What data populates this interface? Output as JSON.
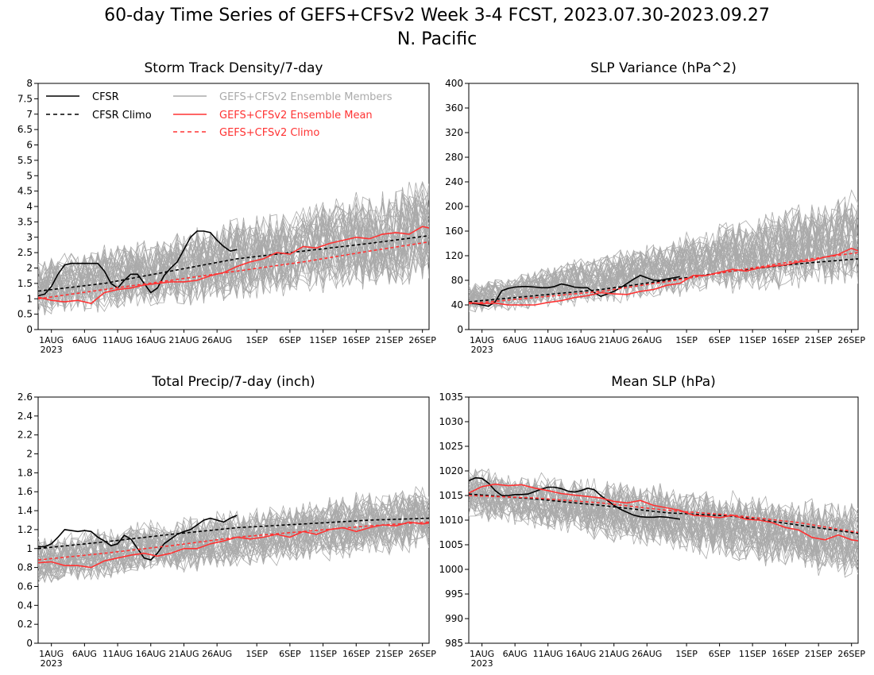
{
  "figure": {
    "title_line1": "60-day Time Series of GEFS+CFSv2 Week 3-4 FCST, 2023.07.30-2023.09.27",
    "title_line2": "N. Pacific"
  },
  "legend": [
    {
      "label": "CFSR",
      "color": "#000000",
      "style": "solid"
    },
    {
      "label": "CFSR Climo",
      "color": "#000000",
      "style": "dashed"
    },
    {
      "label": "GEFS+CFSv2 Ensemble Members",
      "color": "#aaaaaa",
      "style": "solid"
    },
    {
      "label": "GEFS+CFSv2 Ensemble Mean",
      "color": "#ff3333",
      "style": "solid"
    },
    {
      "label": "GEFS+CFSv2 Climo",
      "color": "#ff3333",
      "style": "dashed"
    }
  ],
  "x_axis": {
    "day_range": [
      0,
      59
    ],
    "ticks": [
      {
        "day": 2,
        "label": "1AUG",
        "label2": "2023"
      },
      {
        "day": 7,
        "label": "6AUG"
      },
      {
        "day": 12,
        "label": "11AUG"
      },
      {
        "day": 17,
        "label": "16AUG"
      },
      {
        "day": 22,
        "label": "21AUG"
      },
      {
        "day": 27,
        "label": "26AUG"
      },
      {
        "day": 33,
        "label": "1SEP"
      },
      {
        "day": 38,
        "label": "6SEP"
      },
      {
        "day": 43,
        "label": "11SEP"
      },
      {
        "day": 48,
        "label": "16SEP"
      },
      {
        "day": 53,
        "label": "21SEP"
      },
      {
        "day": 58,
        "label": "26SEP"
      }
    ]
  },
  "chart_data": [
    {
      "type": "line",
      "title": "Storm Track Density/7-day",
      "ylim": [
        0,
        8
      ],
      "yticks": [
        "0",
        "0.5",
        "1",
        "1.5",
        "2",
        "2.5",
        "3",
        "3.5",
        "4",
        "4.5",
        "5",
        "5.5",
        "6",
        "6.5",
        "7",
        "7.5",
        "8"
      ],
      "member_spread": {
        "count": 40,
        "low": [
          0.3,
          1.3
        ],
        "high": [
          2.4,
          5.0
        ]
      },
      "series": [
        {
          "name": "CFSR",
          "x": [
            0,
            1,
            2,
            3,
            4,
            5,
            6,
            7,
            8,
            9,
            10,
            11,
            12,
            13,
            14,
            15,
            16,
            17,
            18,
            19,
            20,
            21,
            22,
            23,
            24,
            25,
            26,
            27,
            28,
            29,
            30
          ],
          "values": [
            1.1,
            1.15,
            1.4,
            1.8,
            2.1,
            2.15,
            2.15,
            2.15,
            2.15,
            2.15,
            1.9,
            1.5,
            1.35,
            1.6,
            1.8,
            1.8,
            1.5,
            1.2,
            1.35,
            1.75,
            2.0,
            2.2,
            2.6,
            3.0,
            3.2,
            3.2,
            3.15,
            2.9,
            2.7,
            2.55,
            2.6
          ]
        },
        {
          "name": "CFSR Climo",
          "x": [
            0,
            10,
            20,
            30,
            40,
            50,
            59
          ],
          "values": [
            1.25,
            1.5,
            1.9,
            2.3,
            2.55,
            2.8,
            3.05
          ]
        },
        {
          "name": "GEFS+CFSv2 Ensemble Mean",
          "x": [
            0,
            2,
            4,
            6,
            8,
            10,
            12,
            14,
            16,
            18,
            20,
            22,
            24,
            26,
            28,
            30,
            32,
            34,
            36,
            38,
            40,
            42,
            44,
            46,
            48,
            50,
            52,
            54,
            56,
            58,
            59
          ],
          "values": [
            1.05,
            0.95,
            0.9,
            0.95,
            0.85,
            1.2,
            1.3,
            1.35,
            1.45,
            1.5,
            1.55,
            1.55,
            1.6,
            1.75,
            1.85,
            2.05,
            2.2,
            2.3,
            2.5,
            2.45,
            2.7,
            2.65,
            2.8,
            2.9,
            3.0,
            2.95,
            3.1,
            3.15,
            3.1,
            3.35,
            3.3
          ]
        },
        {
          "name": "GEFS+CFSv2 Climo",
          "x": [
            0,
            10,
            20,
            30,
            40,
            50,
            59
          ],
          "values": [
            1.0,
            1.3,
            1.6,
            1.9,
            2.2,
            2.55,
            2.85
          ]
        }
      ]
    },
    {
      "type": "line",
      "title": "SLP Variance (hPa^2)",
      "ylim": [
        0,
        400
      ],
      "yticks": [
        "0",
        "40",
        "80",
        "120",
        "160",
        "200",
        "240",
        "280",
        "320",
        "360",
        "400"
      ],
      "member_spread": {
        "count": 40,
        "low": [
          25,
          70
        ],
        "high": [
          75,
          230
        ]
      },
      "series": [
        {
          "name": "CFSR",
          "x": [
            0,
            1,
            2,
            3,
            4,
            5,
            6,
            7,
            8,
            9,
            10,
            11,
            12,
            13,
            14,
            15,
            16,
            17,
            18,
            19,
            20,
            21,
            22,
            23,
            24,
            25,
            26,
            27,
            28,
            29,
            30,
            31,
            32
          ],
          "values": [
            43,
            42,
            40,
            38,
            45,
            63,
            67,
            69,
            70,
            70,
            69,
            68,
            68,
            70,
            74,
            72,
            69,
            68,
            68,
            60,
            54,
            58,
            62,
            68,
            75,
            82,
            88,
            84,
            80,
            80,
            82,
            84,
            86
          ]
        },
        {
          "name": "CFSR Climo",
          "x": [
            0,
            10,
            20,
            30,
            40,
            50,
            59
          ],
          "values": [
            45,
            55,
            65,
            80,
            95,
            107,
            115
          ]
        },
        {
          "name": "GEFS+CFSv2 Ensemble Mean",
          "x": [
            0,
            2,
            4,
            6,
            8,
            10,
            12,
            14,
            16,
            18,
            20,
            22,
            24,
            26,
            28,
            30,
            32,
            34,
            36,
            38,
            40,
            42,
            44,
            46,
            48,
            50,
            52,
            54,
            56,
            58,
            59
          ],
          "values": [
            44,
            42,
            43,
            40,
            40,
            40,
            44,
            47,
            52,
            55,
            60,
            58,
            57,
            62,
            65,
            72,
            75,
            88,
            88,
            93,
            98,
            95,
            100,
            103,
            105,
            110,
            112,
            118,
            122,
            132,
            128
          ]
        },
        {
          "name": "GEFS+CFSv2 Climo",
          "x": [
            0,
            10,
            20,
            30,
            40,
            50,
            59
          ],
          "values": [
            42,
            52,
            62,
            78,
            95,
            112,
            125
          ]
        }
      ]
    },
    {
      "type": "line",
      "title": "Total Precip/7-day (inch)",
      "ylim": [
        0,
        2.6
      ],
      "yticks": [
        "0",
        "0.2",
        "0.4",
        "0.6",
        "0.8",
        "1",
        "1.2",
        "1.4",
        "1.6",
        "1.8",
        "2",
        "2.2",
        "2.4",
        "2.6"
      ],
      "member_spread": {
        "count": 40,
        "low": [
          0.6,
          0.95
        ],
        "high": [
          1.15,
          1.7
        ]
      },
      "series": [
        {
          "name": "CFSR",
          "x": [
            0,
            1,
            2,
            3,
            4,
            5,
            6,
            7,
            8,
            9,
            10,
            11,
            12,
            13,
            14,
            15,
            16,
            17,
            18,
            19,
            20,
            21,
            22,
            23,
            24,
            25,
            26,
            27,
            28,
            29,
            30
          ],
          "values": [
            1.02,
            1.02,
            1.05,
            1.12,
            1.2,
            1.19,
            1.18,
            1.19,
            1.18,
            1.12,
            1.08,
            1.03,
            1.05,
            1.14,
            1.1,
            1.0,
            0.9,
            0.88,
            0.95,
            1.05,
            1.1,
            1.15,
            1.18,
            1.2,
            1.25,
            1.3,
            1.32,
            1.3,
            1.28,
            1.32,
            1.35
          ]
        },
        {
          "name": "CFSR Climo",
          "x": [
            0,
            10,
            20,
            30,
            40,
            50,
            59
          ],
          "values": [
            1.0,
            1.07,
            1.15,
            1.22,
            1.26,
            1.3,
            1.32
          ]
        },
        {
          "name": "GEFS+CFSv2 Ensemble Mean",
          "x": [
            0,
            2,
            4,
            6,
            8,
            10,
            12,
            14,
            16,
            18,
            20,
            22,
            24,
            26,
            28,
            30,
            32,
            34,
            36,
            38,
            40,
            42,
            44,
            46,
            48,
            50,
            52,
            54,
            56,
            58,
            59
          ],
          "values": [
            0.85,
            0.86,
            0.82,
            0.82,
            0.8,
            0.87,
            0.9,
            0.93,
            0.95,
            0.92,
            0.95,
            1.0,
            1.0,
            1.05,
            1.08,
            1.12,
            1.1,
            1.12,
            1.15,
            1.12,
            1.18,
            1.15,
            1.2,
            1.22,
            1.18,
            1.22,
            1.25,
            1.24,
            1.28,
            1.26,
            1.27
          ]
        },
        {
          "name": "GEFS+CFSv2 Climo",
          "x": [
            0,
            10,
            20,
            30,
            40,
            50,
            59
          ],
          "values": [
            0.88,
            0.95,
            1.03,
            1.12,
            1.18,
            1.24,
            1.28
          ]
        }
      ]
    },
    {
      "type": "line",
      "title": "Mean SLP (hPa)",
      "ylim": [
        985,
        1035
      ],
      "yticks": [
        "985",
        "990",
        "995",
        "1000",
        "1005",
        "1010",
        "1015",
        "1020",
        "1025",
        "1030",
        "1035"
      ],
      "member_spread": {
        "count": 40,
        "low": [
          1010,
          997
        ],
        "high": [
          1021,
          1014
        ]
      },
      "series": [
        {
          "name": "CFSR",
          "x": [
            0,
            1,
            2,
            3,
            4,
            5,
            6,
            7,
            8,
            9,
            10,
            11,
            12,
            13,
            14,
            15,
            16,
            17,
            18,
            19,
            20,
            21,
            22,
            23,
            24,
            25,
            26,
            27,
            28,
            29,
            30,
            31,
            32
          ],
          "values": [
            1018,
            1018.6,
            1018.5,
            1017.5,
            1016,
            1015,
            1015,
            1015.2,
            1015.2,
            1015.3,
            1015.8,
            1016.3,
            1016.7,
            1016.7,
            1016.4,
            1015.9,
            1015.7,
            1016,
            1016.5,
            1016.2,
            1015,
            1014,
            1013,
            1012.2,
            1011.6,
            1011,
            1010.7,
            1010.6,
            1010.6,
            1010.7,
            1010.6,
            1010.4,
            1010.2
          ]
        },
        {
          "name": "CFSR Climo",
          "x": [
            0,
            10,
            20,
            30,
            40,
            50,
            59
          ],
          "values": [
            1015.3,
            1014.3,
            1013,
            1011.5,
            1010.8,
            1009,
            1007.3
          ]
        },
        {
          "name": "GEFS+CFSv2 Ensemble Mean",
          "x": [
            0,
            2,
            4,
            6,
            8,
            10,
            12,
            14,
            16,
            18,
            20,
            22,
            24,
            26,
            28,
            30,
            32,
            34,
            36,
            38,
            40,
            42,
            44,
            46,
            48,
            50,
            52,
            54,
            56,
            58,
            59
          ],
          "values": [
            1015.5,
            1016.8,
            1017.3,
            1017,
            1017.2,
            1016.5,
            1016,
            1015.4,
            1015.1,
            1014.8,
            1014.5,
            1013.8,
            1013.5,
            1014,
            1013,
            1012.5,
            1012,
            1011,
            1010.8,
            1010.5,
            1011,
            1010.2,
            1010,
            1009.5,
            1008.5,
            1008,
            1006.5,
            1006,
            1007,
            1006,
            1005.8
          ]
        },
        {
          "name": "GEFS+CFSv2 Climo",
          "x": [
            0,
            10,
            20,
            30,
            40,
            50,
            59
          ],
          "values": [
            1015,
            1014.5,
            1013.5,
            1012,
            1011,
            1009.5,
            1007.5
          ]
        }
      ]
    }
  ]
}
